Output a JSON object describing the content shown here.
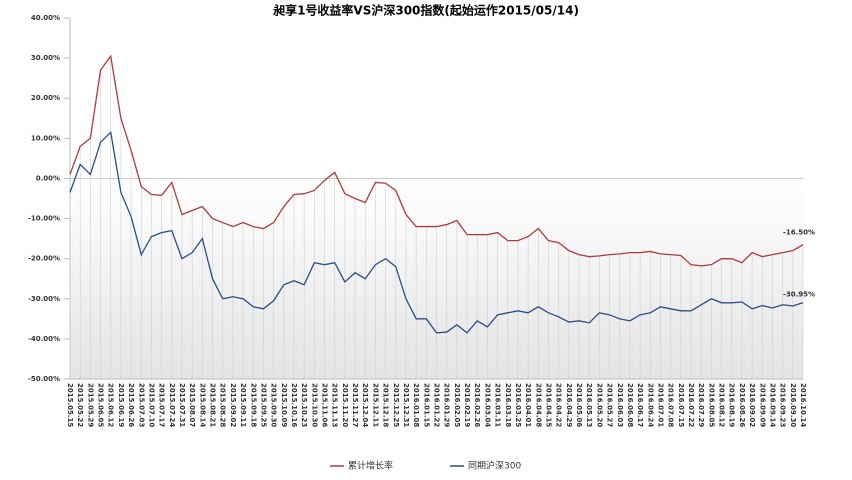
{
  "chart_data": {
    "type": "line",
    "title": "昶享1号收益率VS沪深300指数(起始运作2015/05/14)",
    "categories": [
      "2015.05.15",
      "2015.05.22",
      "2015.05.29",
      "2015.06.05",
      "2015.06.12",
      "2015.06.19",
      "2015.06.26",
      "2015.07.03",
      "2015.07.10",
      "2015.07.17",
      "2015.07.24",
      "2015.07.31",
      "2015.08.07",
      "2015.08.14",
      "2015.08.21",
      "2015.08.28",
      "2015.09.02",
      "2015.09.11",
      "2015.09.18",
      "2015.09.25",
      "2015.09.30",
      "2015.10.09",
      "2015.10.16",
      "2015.10.23",
      "2015.10.30",
      "2015.11.06",
      "2015.11.13",
      "2015.11.20",
      "2015.11.27",
      "2015.12.04",
      "2015.12.11",
      "2015.12.18",
      "2015.12.25",
      "2015.12.31",
      "2016.01.08",
      "2016.01.15",
      "2016.01.22",
      "2016.01.29",
      "2016.02.05",
      "2016.02.19",
      "2016.02.26",
      "2016.03.04",
      "2016.03.11",
      "2016.03.18",
      "2016.03.25",
      "2016.04.01",
      "2016.04.08",
      "2016.04.15",
      "2016.04.22",
      "2016.04.29",
      "2016.05.06",
      "2016.05.13",
      "2016.05.20",
      "2016.05.27",
      "2016.06.03",
      "2016.06.08",
      "2016.06.17",
      "2016.06.24",
      "2016.07.01",
      "2016.07.08",
      "2016.07.15",
      "2016.07.22",
      "2016.07.29",
      "2016.08.05",
      "2016.08.12",
      "2016.08.19",
      "2016.08.26",
      "2016.09.02",
      "2016.09.09",
      "2016.09.14",
      "2016.09.23",
      "2016.09.30",
      "2016.10.14"
    ],
    "series": [
      {
        "name": "累计增长率",
        "color": "#b03a3a",
        "values": [
          1,
          8,
          10,
          27,
          30.5,
          15,
          7,
          -2,
          -4,
          -4.2,
          -1,
          -9,
          -8,
          -7,
          -10,
          -11,
          -12,
          -11,
          -12,
          -12.5,
          -11,
          -7,
          -4,
          -3.8,
          -3,
          -0.5,
          1.5,
          -3.8,
          -5,
          -6,
          -1,
          -1.2,
          -3,
          -9,
          -12,
          -12,
          -12,
          -11.5,
          -10.5,
          -14,
          -14,
          -14,
          -13.5,
          -15.5,
          -15.5,
          -14.5,
          -12.5,
          -15.5,
          -16,
          -18,
          -19,
          -19.5,
          -19.3,
          -19,
          -18.8,
          -18.5,
          -18.5,
          -18.2,
          -18.8,
          -19,
          -19.2,
          -21.5,
          -21.8,
          -21.5,
          -20,
          -20,
          -21,
          -18.5,
          -19.5,
          -19,
          -18.5,
          -18,
          -16.5
        ],
        "value_labels": [
          null,
          null,
          null,
          null,
          null,
          null,
          null,
          null,
          null,
          null,
          null,
          null,
          null,
          null,
          null,
          null,
          null,
          null,
          null,
          null,
          null,
          null,
          null,
          null,
          null,
          null,
          null,
          null,
          null,
          null,
          null,
          null,
          null,
          null,
          null,
          null,
          null,
          null,
          null,
          null,
          null,
          null,
          null,
          null,
          null,
          null,
          null,
          null,
          null,
          null,
          null,
          null,
          null,
          null,
          null,
          null,
          null,
          null,
          null,
          null,
          null,
          null,
          null,
          null,
          null,
          null,
          null,
          null,
          null,
          null,
          null,
          null,
          "-16.50%"
        ]
      },
      {
        "name": "同期沪深300",
        "color": "#2a4d8a",
        "values": [
          -3.5,
          3.5,
          1,
          9,
          11.5,
          -3.5,
          -9.5,
          -19,
          -14.5,
          -13.5,
          -13,
          -20,
          -18.5,
          -15,
          -25,
          -30,
          -29.5,
          -30,
          -32,
          -32.5,
          -30.5,
          -26.5,
          -25.5,
          -26.5,
          -21,
          -21.5,
          -21,
          -25.8,
          -23.5,
          -25,
          -21.5,
          -20,
          -22,
          -30,
          -35,
          -35,
          -38.5,
          -38.3,
          -36.5,
          -38.5,
          -35.5,
          -37,
          -34,
          -33.5,
          -33,
          -33.5,
          -32,
          -33.5,
          -34.5,
          -35.8,
          -35.5,
          -36,
          -33.5,
          -34,
          -35,
          -35.5,
          -34,
          -33.5,
          -32,
          -32.5,
          -33,
          -33,
          -31.5,
          -30,
          -31,
          -31,
          -30.8,
          -32.5,
          -31.7,
          -32.3,
          -31.5,
          -31.8,
          -30.95
        ],
        "value_labels": [
          null,
          null,
          null,
          null,
          null,
          null,
          null,
          null,
          null,
          null,
          null,
          null,
          null,
          null,
          null,
          null,
          null,
          null,
          null,
          null,
          null,
          null,
          null,
          null,
          null,
          null,
          null,
          null,
          null,
          null,
          null,
          null,
          null,
          null,
          null,
          null,
          null,
          null,
          null,
          null,
          null,
          null,
          null,
          null,
          null,
          null,
          null,
          null,
          null,
          null,
          null,
          null,
          null,
          null,
          null,
          null,
          null,
          null,
          null,
          null,
          null,
          null,
          null,
          null,
          null,
          null,
          null,
          null,
          null,
          null,
          null,
          null,
          "-30.95%"
        ]
      }
    ],
    "ylim": [
      -50,
      40
    ],
    "yticks": [
      {
        "value": -50,
        "label": "-50.00%"
      },
      {
        "value": -40,
        "label": "-40.00%"
      },
      {
        "value": -30,
        "label": "-30.00%"
      },
      {
        "value": -20,
        "label": "-20.00%"
      },
      {
        "value": -10,
        "label": "-10.00%"
      },
      {
        "value": 0,
        "label": "0.00%"
      },
      {
        "value": 10,
        "label": "10.00%"
      },
      {
        "value": 20,
        "label": "20.00%"
      },
      {
        "value": 30,
        "label": "30.00%"
      },
      {
        "value": 40,
        "label": "40.00%"
      }
    ],
    "legend": "bottom"
  }
}
